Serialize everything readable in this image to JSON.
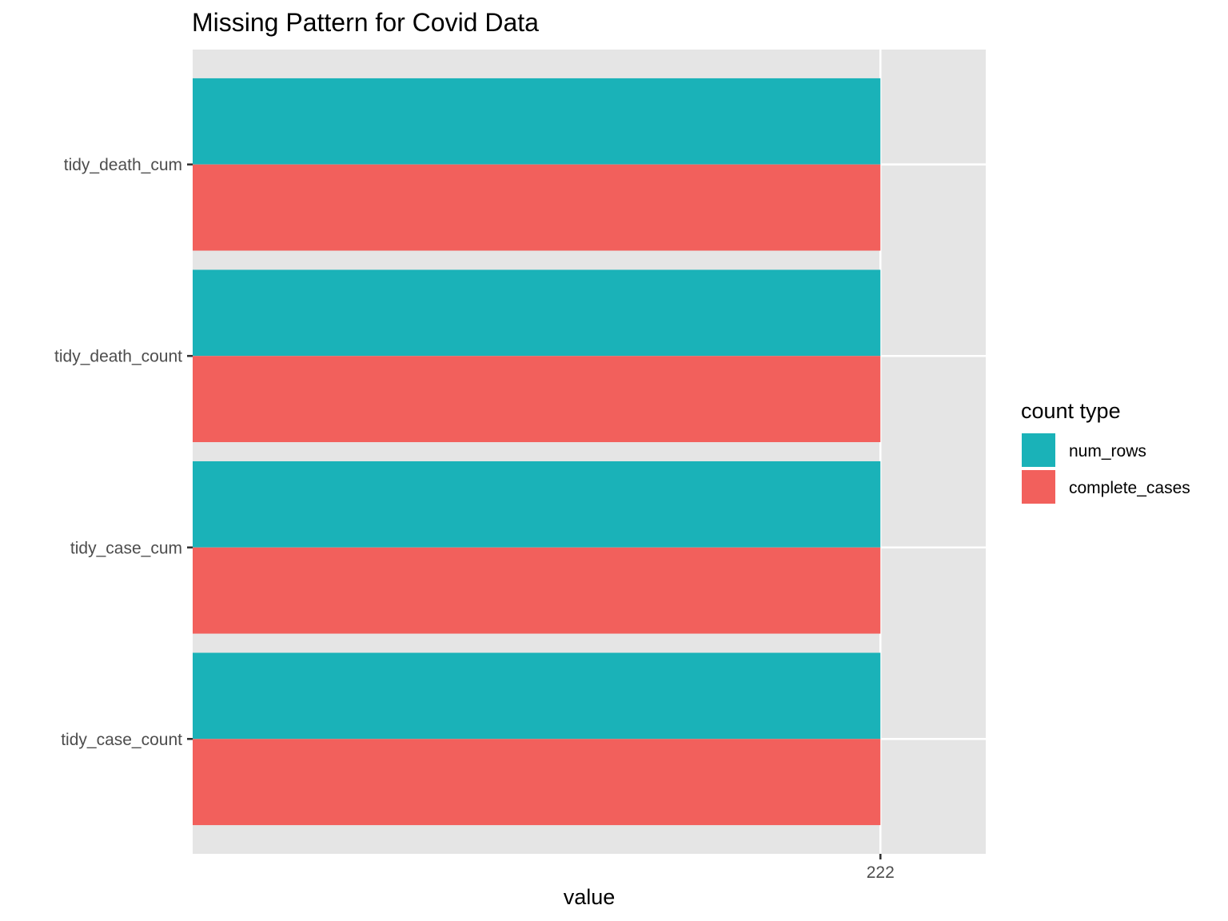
{
  "chart_data": {
    "type": "bar",
    "orientation": "horizontal",
    "title": "Missing Pattern for Covid Data",
    "xlabel": "value",
    "ylabel": "",
    "categories": [
      "tidy_death_cum",
      "tidy_death_count",
      "tidy_case_cum",
      "tidy_case_count"
    ],
    "x_ticks": [
      222
    ],
    "xlim": [
      0,
      256
    ],
    "grid": true,
    "legend": {
      "title": "count type",
      "position": "right"
    },
    "series": [
      {
        "name": "num_rows",
        "color": "#1AB2B8",
        "values": [
          222,
          222,
          222,
          222
        ]
      },
      {
        "name": "complete_cases",
        "color": "#F2605C",
        "values": [
          222,
          222,
          222,
          222
        ]
      }
    ]
  }
}
